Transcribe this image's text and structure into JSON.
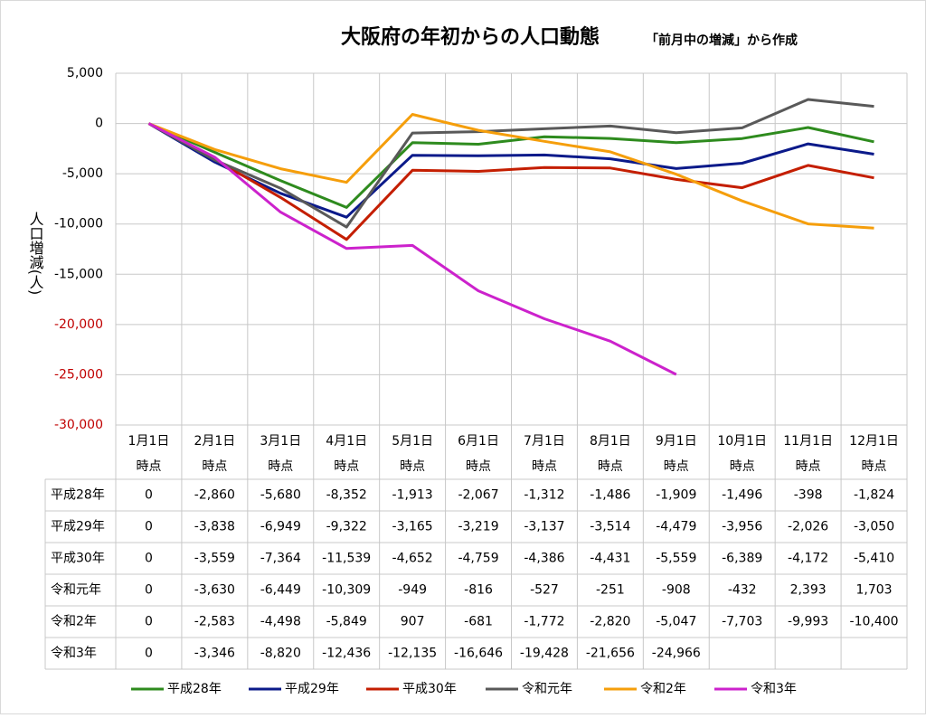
{
  "chart_data": {
    "type": "line",
    "title": "大阪府の年初からの人口動態",
    "subtitle": "「前月中の増減」から作成",
    "y_label": "人口増減(人)",
    "categories": [
      "1月1日\n時点",
      "2月1日\n時点",
      "3月1日\n時点",
      "4月1日\n時点",
      "5月1日\n時点",
      "6月1日\n時点",
      "7月1日\n時点",
      "8月1日\n時点",
      "9月1日\n時点",
      "10月1日\n時点",
      "11月1日\n時点",
      "12月1日\n時点"
    ],
    "ylim": [
      -30000,
      5000
    ],
    "yticks": [
      {
        "value": 5000,
        "label": "5,000"
      },
      0,
      {
        "value": -5000,
        "label": "-5,000"
      },
      {
        "value": -10000,
        "label": "-10,000"
      },
      {
        "value": -15000,
        "label": "-15,000"
      },
      {
        "value": -20000,
        "label": "-20,000"
      },
      {
        "value": -25000,
        "label": "-25,000"
      },
      {
        "value": -30000,
        "label": "-30,000"
      }
    ],
    "ytick_colors": [
      "#000000",
      "#000000",
      "#000000",
      "#000000",
      "#000000",
      "#c00000",
      "#c00000",
      "#c00000"
    ],
    "grid": true,
    "legend": "bottom",
    "series": [
      {
        "name": "平成28年",
        "color": "#2e8b1e",
        "values": [
          0,
          -2860,
          -5680,
          -8352,
          -1913,
          -2067,
          -1312,
          -1486,
          -1909,
          -1496,
          -398,
          -1824
        ],
        "value_labels": [
          "0",
          "-2,860",
          "-5,680",
          "-8,352",
          "-1,913",
          "-2,067",
          "-1,312",
          "-1,486",
          "-1,909",
          "-1,496",
          "-398",
          "-1,824"
        ]
      },
      {
        "name": "平成29年",
        "color": "#0b1a8a",
        "values": [
          0,
          -3838,
          -6949,
          -9322,
          -3165,
          -3219,
          -3137,
          -3514,
          -4479,
          -3956,
          -2026,
          -3050
        ],
        "value_labels": [
          "0",
          "-3,838",
          "-6,949",
          "-9,322",
          "-3,165",
          "-3,219",
          "-3,137",
          "-3,514",
          "-4,479",
          "-3,956",
          "-2,026",
          "-3,050"
        ]
      },
      {
        "name": "平成30年",
        "color": "#c41e00",
        "values": [
          0,
          -3559,
          -7364,
          -11539,
          -4652,
          -4759,
          -4386,
          -4431,
          -5559,
          -6389,
          -4172,
          -5410
        ],
        "value_labels": [
          "0",
          "-3,559",
          "-7,364",
          "-11,539",
          "-4,652",
          "-4,759",
          "-4,386",
          "-4,431",
          "-5,559",
          "-6,389",
          "-4,172",
          "-5,410"
        ]
      },
      {
        "name": "令和元年",
        "color": "#595959",
        "values": [
          0,
          -3630,
          -6449,
          -10309,
          -949,
          -816,
          -527,
          -251,
          -908,
          -432,
          2393,
          1703
        ],
        "value_labels": [
          "0",
          "-3,630",
          "-6,449",
          "-10,309",
          "-949",
          "-816",
          "-527",
          "-251",
          "-908",
          "-432",
          "2,393",
          "1,703"
        ]
      },
      {
        "name": "令和2年",
        "color": "#f59e0b",
        "values": [
          0,
          -2583,
          -4498,
          -5849,
          907,
          -681,
          -1772,
          -2820,
          -5047,
          -7703,
          -9993,
          -10400
        ],
        "value_labels": [
          "0",
          "-2,583",
          "-4,498",
          "-5,849",
          "907",
          "-681",
          "-1,772",
          "-2,820",
          "-5,047",
          "-7,703",
          "-9,993",
          "-10,400"
        ]
      },
      {
        "name": "令和3年",
        "color": "#cc22cc",
        "values": [
          0,
          -3346,
          -8820,
          -12436,
          -12135,
          -16646,
          -19428,
          -21656,
          -24966,
          null,
          null,
          null
        ],
        "value_labels": [
          "0",
          "-3,346",
          "-8,820",
          "-12,436",
          "-12,135",
          "-16,646",
          "-19,428",
          "-21,656",
          "-24,966",
          null,
          null,
          null
        ]
      }
    ]
  }
}
